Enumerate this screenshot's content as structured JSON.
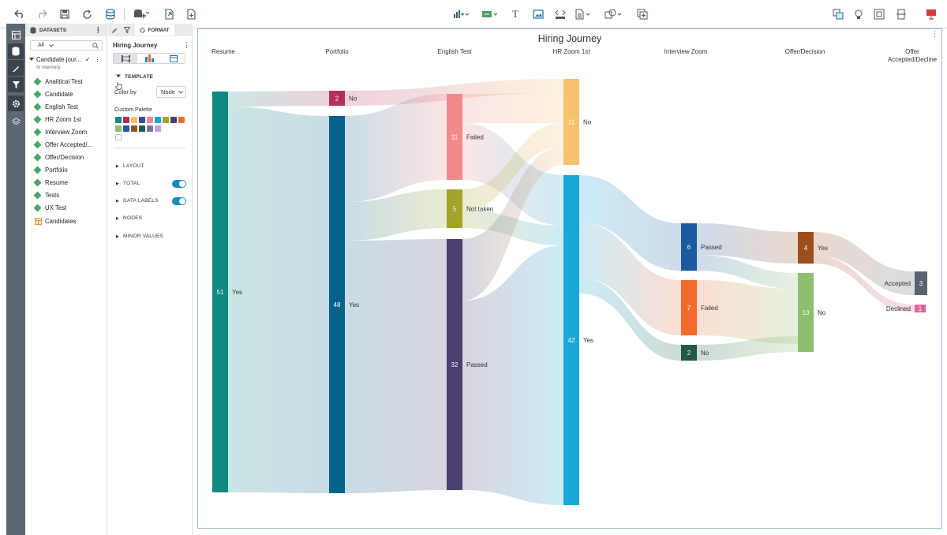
{
  "toolbar": {
    "icons": [
      "undo-icon",
      "redo-icon",
      "save-icon",
      "refresh-icon",
      "database-icon",
      "add-data-icon",
      "export-icon",
      "new-document-icon",
      "chart-type-icon",
      "insert-control-icon",
      "text-icon",
      "image-icon",
      "html-icon",
      "table-icon",
      "shapes-icon",
      "add-visualization-icon",
      "link-icon",
      "suggestion-icon",
      "fit-icon",
      "layout-icon",
      "present-icon"
    ]
  },
  "rail": {
    "icons": [
      "layout-icon",
      "datasets-icon",
      "edit-icon",
      "filter-icon",
      "settings-icon",
      "layers-icon"
    ]
  },
  "datasets": {
    "header": "DATASETS",
    "filter_value": "All",
    "dataset_name": "Candidate jour...",
    "dataset_status": "In memory",
    "items": [
      "Analitical Test",
      "Candidate",
      "English Test",
      "HR Zoom 1st",
      "Interview Zoom",
      "Offer Accepted/...",
      "Offer/Decision",
      "Portfolio",
      "Resume",
      "Tests",
      "UX Test"
    ],
    "table_item": "Candidates"
  },
  "format": {
    "tab_label": "FORMAT",
    "viz_name": "Hiring Journey",
    "template_label": "TEMPLATE",
    "color_by_label": "Color by",
    "color_by_value": "Node",
    "palette_label": "Custom Palette",
    "palette_colors": [
      "#0f8a7e",
      "#b02f61",
      "#f7c26b",
      "#3d4a8e",
      "#f28a8a",
      "#1aa6d6",
      "#a3a32b",
      "#4a3f6e",
      "#f26b2c",
      "#8cbf6e",
      "#1c5a9e",
      "#9c4f1c",
      "#1d5b45",
      "#7a6fb1",
      "#b5a7dc"
    ],
    "sections": [
      "LAYOUT",
      "TOTAL",
      "DATA LABELS",
      "NODES",
      "MINOR VALUES"
    ]
  },
  "chart_data": {
    "type": "sankey",
    "title": "Hiring Journey",
    "stages": [
      "Resume",
      "Portfolio",
      "English Test",
      "HR Zoom 1st",
      "Interview Zoom",
      "Offer/Decision",
      "Offer Accepted/Decline"
    ],
    "nodes": [
      {
        "id": "res_yes",
        "stage": 0,
        "label": "Yes",
        "value": 51,
        "color": "#0f8a7e"
      },
      {
        "id": "port_no",
        "stage": 1,
        "label": "No",
        "value": 2,
        "color": "#b02f61"
      },
      {
        "id": "port_yes",
        "stage": 1,
        "label": "Yes",
        "value": 48,
        "color": "#06628a"
      },
      {
        "id": "eng_failed",
        "stage": 2,
        "label": "Failed",
        "value": 11,
        "color": "#f28a8a"
      },
      {
        "id": "eng_nottaken",
        "stage": 2,
        "label": "Not taken",
        "value": 5,
        "color": "#a3a32b"
      },
      {
        "id": "eng_passed",
        "stage": 2,
        "label": "Passed",
        "value": 32,
        "color": "#4a3f6e"
      },
      {
        "id": "hr_no",
        "stage": 3,
        "label": "No",
        "value": 11,
        "color": "#f7c26b"
      },
      {
        "id": "hr_yes",
        "stage": 3,
        "label": "Yes",
        "value": 42,
        "color": "#1aa6d6"
      },
      {
        "id": "iz_passed",
        "stage": 4,
        "label": "Passed",
        "value": 6,
        "color": "#1c5a9e"
      },
      {
        "id": "iz_failed",
        "stage": 4,
        "label": "Failed",
        "value": 7,
        "color": "#f26b2c"
      },
      {
        "id": "iz_no",
        "stage": 4,
        "label": "No",
        "value": 2,
        "color": "#1d5b45"
      },
      {
        "id": "od_yes",
        "stage": 5,
        "label": "Yes",
        "value": 4,
        "color": "#9c4f1c"
      },
      {
        "id": "od_no",
        "stage": 5,
        "label": "No",
        "value": 10,
        "color": "#8cbf6e"
      },
      {
        "id": "oa_accepted",
        "stage": 6,
        "label": "Accepted",
        "value": 3,
        "color": "#5a6470"
      },
      {
        "id": "oa_declined",
        "stage": 6,
        "label": "Declined",
        "value": 1,
        "color": "#e066a0"
      }
    ]
  }
}
